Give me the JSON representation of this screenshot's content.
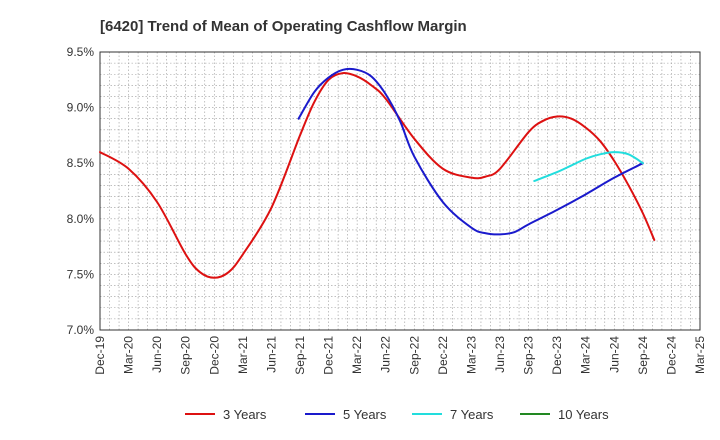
{
  "chart_data": {
    "type": "line",
    "title": "[6420]  Trend of Mean of Operating Cashflow Margin",
    "xlabel": "",
    "ylabel": "",
    "ylim": [
      7.0,
      9.5
    ],
    "y_ticks": [
      "7.0%",
      "7.5%",
      "8.0%",
      "8.5%",
      "9.0%",
      "9.5%"
    ],
    "x_ticks": [
      "Dec-19",
      "Mar-20",
      "Jun-20",
      "Sep-20",
      "Dec-20",
      "Mar-21",
      "Jun-21",
      "Sep-21",
      "Dec-21",
      "Mar-22",
      "Jun-22",
      "Sep-22",
      "Dec-22",
      "Mar-23",
      "Jun-23",
      "Sep-23",
      "Dec-23",
      "Mar-24",
      "Jun-24",
      "Sep-24",
      "Dec-24",
      "Mar-25"
    ],
    "grid": true,
    "legend_position": "bottom",
    "series": [
      {
        "name": "3 Years",
        "color": "#dd1111",
        "points": [
          [
            0,
            8.6
          ],
          [
            1,
            8.45
          ],
          [
            2,
            8.15
          ],
          [
            3,
            7.68
          ],
          [
            3.5,
            7.52
          ],
          [
            4,
            7.47
          ],
          [
            4.5,
            7.52
          ],
          [
            5,
            7.68
          ],
          [
            6,
            8.1
          ],
          [
            7,
            8.75
          ],
          [
            7.5,
            9.05
          ],
          [
            8,
            9.25
          ],
          [
            8.5,
            9.31
          ],
          [
            9,
            9.28
          ],
          [
            9.5,
            9.2
          ],
          [
            10,
            9.08
          ],
          [
            11,
            8.72
          ],
          [
            12,
            8.45
          ],
          [
            13,
            8.37
          ],
          [
            13.5,
            8.38
          ],
          [
            14,
            8.45
          ],
          [
            15,
            8.78
          ],
          [
            15.5,
            8.88
          ],
          [
            16,
            8.92
          ],
          [
            16.5,
            8.9
          ],
          [
            17,
            8.82
          ],
          [
            17.5,
            8.7
          ],
          [
            18,
            8.52
          ],
          [
            18.5,
            8.3
          ],
          [
            19,
            8.05
          ],
          [
            19.4,
            7.81
          ]
        ]
      },
      {
        "name": "5 Years",
        "color": "#1a1acc",
        "points": [
          [
            6.95,
            8.9
          ],
          [
            7.5,
            9.14
          ],
          [
            8,
            9.27
          ],
          [
            8.5,
            9.34
          ],
          [
            9,
            9.34
          ],
          [
            9.5,
            9.28
          ],
          [
            10,
            9.12
          ],
          [
            10.5,
            8.88
          ],
          [
            11,
            8.56
          ],
          [
            12,
            8.15
          ],
          [
            13,
            7.92
          ],
          [
            13.5,
            7.87
          ],
          [
            14,
            7.86
          ],
          [
            14.5,
            7.88
          ],
          [
            15,
            7.95
          ],
          [
            16,
            8.08
          ],
          [
            17,
            8.22
          ],
          [
            18,
            8.37
          ],
          [
            19,
            8.5
          ]
        ]
      },
      {
        "name": "7 Years",
        "color": "#22dddd",
        "points": [
          [
            15.2,
            8.34
          ],
          [
            16,
            8.42
          ],
          [
            16.5,
            8.48
          ],
          [
            17,
            8.54
          ],
          [
            17.5,
            8.58
          ],
          [
            18,
            8.6
          ],
          [
            18.5,
            8.58
          ],
          [
            19,
            8.5
          ]
        ]
      },
      {
        "name": "10 Years",
        "color": "#228822",
        "points": []
      }
    ]
  }
}
